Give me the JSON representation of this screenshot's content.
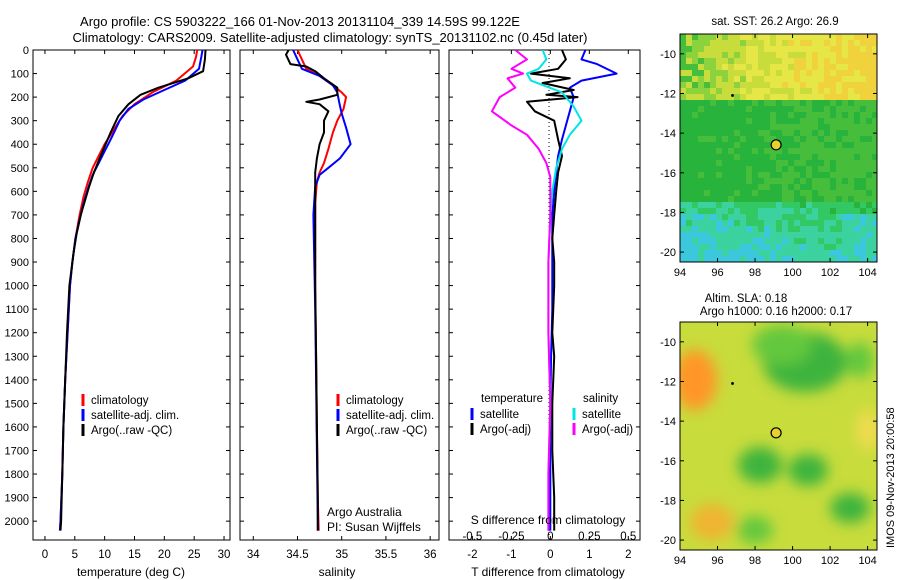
{
  "header": {
    "title_line1": "Argo profile: CS 5903222_166 01-Nov-2013 20131104_339 14.59S 99.122E",
    "title_line2": "Climatology: CARS2009. Satellite-adjusted climatology: synTS_20131102.nc (0.45d later)"
  },
  "footer": {
    "vertical_credit": "IMOS 09-Nov-2013 20:00:58"
  },
  "colors": {
    "climatology": "#ff0000",
    "satellite": "#0000ff",
    "argo": "#000000",
    "salinity_satellite": "#00e5e5",
    "salinity_argo": "#ff00ff"
  },
  "chart_data": [
    {
      "id": "temperature",
      "type": "line",
      "xlabel": "temperature (deg C)",
      "xlim": [
        -2,
        31
      ],
      "xticks": [
        0,
        5,
        10,
        15,
        20,
        25,
        30
      ],
      "ylim": [
        0,
        2080
      ],
      "yticks": [
        0,
        100,
        200,
        300,
        400,
        500,
        600,
        700,
        800,
        900,
        1000,
        1100,
        1200,
        1300,
        1400,
        1500,
        1600,
        1700,
        1800,
        1900,
        2000
      ],
      "legend": [
        "climatology",
        "satellite-adj. clim.",
        "Argo(..raw -QC)"
      ],
      "series": [
        {
          "name": "climatology",
          "color": "#ff0000",
          "points": [
            [
              25.5,
              0
            ],
            [
              25.3,
              30
            ],
            [
              24.8,
              70
            ],
            [
              22,
              130
            ],
            [
              18,
              180
            ],
            [
              15,
              230
            ],
            [
              13,
              280
            ],
            [
              11.5,
              340
            ],
            [
              10,
              400
            ],
            [
              9,
              450
            ],
            [
              8,
              500
            ],
            [
              7.2,
              560
            ],
            [
              6.5,
              620
            ],
            [
              5.8,
              700
            ],
            [
              5.1,
              800
            ],
            [
              4.6,
              900
            ],
            [
              4.2,
              1000
            ],
            [
              3.8,
              1200
            ],
            [
              3.4,
              1400
            ],
            [
              3.1,
              1600
            ],
            [
              2.9,
              1800
            ],
            [
              2.6,
              2000
            ],
            [
              2.5,
              2040
            ]
          ]
        },
        {
          "name": "satellite-adj. clim.",
          "color": "#0000ff",
          "points": [
            [
              26.4,
              0
            ],
            [
              26.2,
              30
            ],
            [
              25.8,
              80
            ],
            [
              23.5,
              130
            ],
            [
              20,
              170
            ],
            [
              16.5,
              210
            ],
            [
              14,
              250
            ],
            [
              12.5,
              300
            ],
            [
              11.2,
              370
            ],
            [
              10,
              430
            ],
            [
              9,
              480
            ],
            [
              8,
              530
            ],
            [
              7.2,
              590
            ],
            [
              6.5,
              650
            ],
            [
              5.8,
              720
            ],
            [
              5.1,
              800
            ],
            [
              4.6,
              900
            ],
            [
              4.2,
              1000
            ],
            [
              3.8,
              1200
            ],
            [
              3.4,
              1400
            ],
            [
              3.1,
              1600
            ],
            [
              2.9,
              1800
            ],
            [
              2.6,
              2000
            ],
            [
              2.5,
              2040
            ]
          ]
        },
        {
          "name": "Argo(..raw -QC)",
          "color": "#000000",
          "points": [
            [
              26.9,
              0
            ],
            [
              26.8,
              40
            ],
            [
              26.5,
              90
            ],
            [
              24,
              120
            ],
            [
              19,
              160
            ],
            [
              16,
              190
            ],
            [
              14,
              230
            ],
            [
              12.3,
              280
            ],
            [
              11,
              350
            ],
            [
              10,
              410
            ],
            [
              9,
              470
            ],
            [
              8.2,
              520
            ],
            [
              7.4,
              580
            ],
            [
              6.7,
              640
            ],
            [
              6,
              700
            ],
            [
              5.3,
              780
            ],
            [
              4.8,
              860
            ],
            [
              4.4,
              940
            ],
            [
              4.1,
              1000
            ],
            [
              3.7,
              1200
            ],
            [
              3.4,
              1400
            ],
            [
              3.1,
              1600
            ],
            [
              2.9,
              1800
            ],
            [
              2.7,
              2000
            ],
            [
              2.6,
              2040
            ]
          ]
        }
      ]
    },
    {
      "id": "salinity",
      "type": "line",
      "xlabel": "salinity",
      "xlim": [
        33.85,
        36.1
      ],
      "xticks": [
        34,
        34.5,
        35,
        35.5,
        36
      ],
      "ylim": [
        0,
        2080
      ],
      "legend": [
        "climatology",
        "satellite-adj. clim.",
        "Argo(..raw -QC)"
      ],
      "annotation": [
        "Argo Australia",
        "PI: Susan Wijffels"
      ],
      "series": [
        {
          "name": "climatology",
          "color": "#ff0000",
          "points": [
            [
              34.5,
              0
            ],
            [
              34.55,
              40
            ],
            [
              34.6,
              80
            ],
            [
              34.75,
              110
            ],
            [
              34.9,
              150
            ],
            [
              35,
              180
            ],
            [
              35.05,
              200
            ],
            [
              35.02,
              250
            ],
            [
              34.95,
              300
            ],
            [
              34.9,
              350
            ],
            [
              34.85,
              420
            ],
            [
              34.8,
              480
            ],
            [
              34.75,
              520
            ],
            [
              34.72,
              560
            ],
            [
              34.7,
              650
            ],
            [
              34.7,
              800
            ],
            [
              34.7,
              1000
            ],
            [
              34.71,
              1300
            ],
            [
              34.72,
              1600
            ],
            [
              34.73,
              1900
            ],
            [
              34.74,
              2040
            ]
          ]
        },
        {
          "name": "satellite-adj. clim.",
          "color": "#0000ff",
          "points": [
            [
              34.45,
              0
            ],
            [
              34.5,
              40
            ],
            [
              34.55,
              80
            ],
            [
              34.75,
              110
            ],
            [
              34.9,
              150
            ],
            [
              34.95,
              180
            ],
            [
              34.97,
              220
            ],
            [
              35.0,
              270
            ],
            [
              35.05,
              330
            ],
            [
              35.1,
              400
            ],
            [
              34.98,
              460
            ],
            [
              34.85,
              500
            ],
            [
              34.75,
              530
            ],
            [
              34.7,
              580
            ],
            [
              34.68,
              700
            ],
            [
              34.69,
              900
            ],
            [
              34.7,
              1100
            ],
            [
              34.71,
              1400
            ],
            [
              34.72,
              1700
            ],
            [
              34.73,
              2000
            ],
            [
              34.73,
              2040
            ]
          ]
        },
        {
          "name": "Argo(..raw -QC)",
          "color": "#000000",
          "points": [
            [
              34.4,
              0
            ],
            [
              34.37,
              20
            ],
            [
              34.42,
              60
            ],
            [
              34.6,
              70
            ],
            [
              34.7,
              90
            ],
            [
              34.8,
              120
            ],
            [
              34.95,
              160
            ],
            [
              34.95,
              190
            ],
            [
              34.75,
              210
            ],
            [
              34.6,
              220
            ],
            [
              34.75,
              230
            ],
            [
              34.85,
              260
            ],
            [
              34.8,
              300
            ],
            [
              34.8,
              350
            ],
            [
              34.75,
              400
            ],
            [
              34.72,
              460
            ],
            [
              34.7,
              520
            ],
            [
              34.7,
              700
            ],
            [
              34.7,
              1000
            ],
            [
              34.71,
              1300
            ],
            [
              34.72,
              1600
            ],
            [
              34.73,
              1900
            ],
            [
              34.73,
              2040
            ]
          ]
        }
      ]
    },
    {
      "id": "differences",
      "type": "line",
      "xlabel": "T difference from climatology",
      "xlabel_top": "S difference from climatology",
      "xlim": [
        -2.6,
        2.3
      ],
      "xticks": [
        -2,
        -1,
        0,
        1,
        2
      ],
      "xticks_salinity": [
        -0.5,
        -0.25,
        0,
        0.25,
        0.5
      ],
      "ylim": [
        0,
        2080
      ],
      "legend_temperature_title": "temperature",
      "legend_salinity_title": "salinity",
      "legend": [
        "satellite",
        "Argo(-adj)",
        "satellite",
        "Argo(-adj)"
      ],
      "series": [
        {
          "name": "satellite",
          "color": "#0000ff",
          "points": [
            [
              0.9,
              0
            ],
            [
              0.8,
              40
            ],
            [
              1.2,
              60
            ],
            [
              1.7,
              100
            ],
            [
              0.8,
              130
            ],
            [
              0.5,
              160
            ],
            [
              0.6,
              200
            ],
            [
              0.5,
              260
            ],
            [
              0.4,
              320
            ],
            [
              0.3,
              380
            ],
            [
              0.2,
              450
            ],
            [
              0.15,
              520
            ],
            [
              0.1,
              600
            ],
            [
              0.05,
              700
            ],
            [
              0.05,
              900
            ],
            [
              0.05,
              1100
            ],
            [
              0.02,
              1300
            ],
            [
              0,
              1500
            ],
            [
              0,
              1800
            ],
            [
              0,
              2040
            ]
          ]
        },
        {
          "name": "Argo(-adj)",
          "color": "#000000",
          "points": [
            [
              0.3,
              0
            ],
            [
              0.4,
              40
            ],
            [
              0.2,
              80
            ],
            [
              -0.5,
              100
            ],
            [
              0.5,
              120
            ],
            [
              -0.2,
              140
            ],
            [
              0.6,
              170
            ],
            [
              -0.1,
              190
            ],
            [
              0.7,
              200
            ],
            [
              -0.6,
              220
            ],
            [
              -0.4,
              260
            ],
            [
              0.1,
              300
            ],
            [
              0.2,
              380
            ],
            [
              0.3,
              450
            ],
            [
              0.2,
              520
            ],
            [
              0.15,
              600
            ],
            [
              0.1,
              700
            ],
            [
              0.05,
              800
            ],
            [
              0.1,
              900
            ],
            [
              0.1,
              1000
            ],
            [
              0.05,
              1200
            ],
            [
              0.1,
              1300
            ],
            [
              0.05,
              1500
            ],
            [
              0.05,
              1700
            ],
            [
              0.1,
              1900
            ],
            [
              0.1,
              2040
            ]
          ]
        },
        {
          "name": "satellite (salinity)",
          "color": "#00e5e5",
          "points": [
            [
              -0.2,
              0
            ],
            [
              -0.1,
              40
            ],
            [
              -0.3,
              80
            ],
            [
              -0.6,
              100
            ],
            [
              -0.5,
              130
            ],
            [
              0.3,
              180
            ],
            [
              0.6,
              240
            ],
            [
              0.8,
              300
            ],
            [
              0.5,
              360
            ],
            [
              0.3,
              420
            ],
            [
              0.15,
              500
            ],
            [
              0.05,
              600
            ],
            [
              0,
              700
            ],
            [
              -0.05,
              900
            ],
            [
              -0.05,
              1200
            ],
            [
              0,
              1500
            ],
            [
              -0.05,
              1800
            ],
            [
              -0.05,
              2040
            ]
          ]
        },
        {
          "name": "Argo(-adj) (salinity)",
          "color": "#ff00ff",
          "points": [
            [
              -0.9,
              0
            ],
            [
              -0.6,
              40
            ],
            [
              -1.0,
              80
            ],
            [
              -0.7,
              100
            ],
            [
              -1.1,
              120
            ],
            [
              -0.9,
              160
            ],
            [
              -1.3,
              200
            ],
            [
              -1.5,
              260
            ],
            [
              -1.0,
              320
            ],
            [
              -0.6,
              360
            ],
            [
              -0.3,
              420
            ],
            [
              -0.1,
              480
            ],
            [
              0,
              540
            ],
            [
              0,
              700
            ],
            [
              -0.05,
              900
            ],
            [
              -0.05,
              1200
            ],
            [
              0,
              1500
            ],
            [
              -0.05,
              1800
            ],
            [
              -0.05,
              2040
            ]
          ]
        }
      ]
    },
    {
      "id": "sst_map",
      "type": "heatmap",
      "title": "sat. SST: 26.2  Argo: 26.9",
      "xlim": [
        94,
        104.5
      ],
      "ylim": [
        -20.5,
        -9
      ],
      "xticks": [
        94,
        96,
        98,
        100,
        102,
        104
      ],
      "yticks": [
        -10,
        -12,
        -14,
        -16,
        -18,
        -20
      ],
      "marker": {
        "lon": 99.122,
        "lat": -14.59
      },
      "dot": {
        "lon": 96.8,
        "lat": -12.1
      }
    },
    {
      "id": "sla_map",
      "type": "heatmap",
      "title_line1": "Altim. SLA: 0.18",
      "title_line2": "Argo h1000: 0.16 h2000: 0.17",
      "xlim": [
        94,
        104.5
      ],
      "ylim": [
        -20.5,
        -9
      ],
      "xticks": [
        94,
        96,
        98,
        100,
        102,
        104
      ],
      "yticks": [
        -10,
        -12,
        -14,
        -16,
        -18,
        -20
      ],
      "marker": {
        "lon": 99.122,
        "lat": -14.59
      },
      "dot": {
        "lon": 96.8,
        "lat": -12.1
      }
    }
  ]
}
